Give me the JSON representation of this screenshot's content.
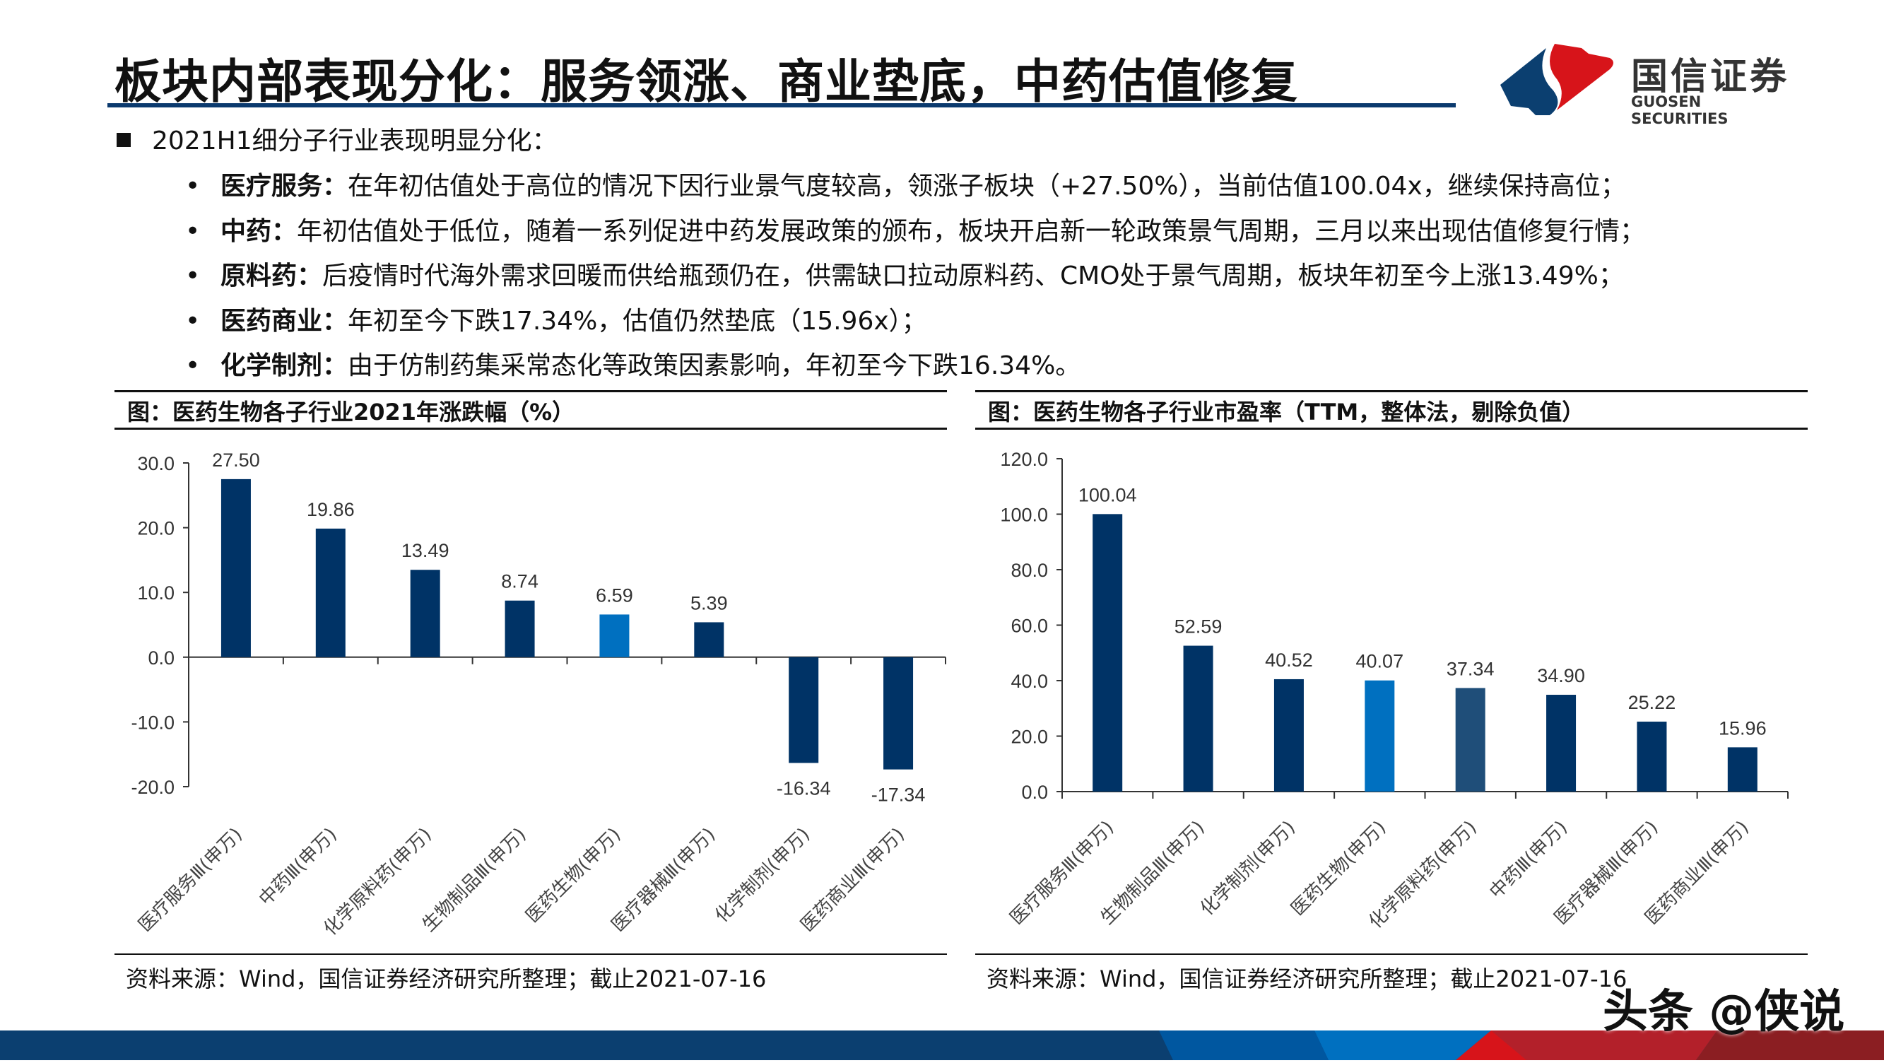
{
  "header": {
    "title": "板块内部表现分化：服务领涨、商业垫底，中药估值修复",
    "logo": {
      "cn": "国信证券",
      "en": "GUOSEN SECURITIES"
    }
  },
  "body": {
    "lead": "2021H1细分子行业表现明显分化：",
    "bullets": [
      {
        "bold": "医疗服务：",
        "text": "在年初估值处于高位的情况下因行业景气度较高，领涨子板块（+27.50%），当前估值100.04x，继续保持高位；"
      },
      {
        "bold": "中药：",
        "text": "年初估值处于低位，随着一系列促进中药发展政策的颁布，板块开启新一轮政策景气周期，三月以来出现估值修复行情；"
      },
      {
        "bold": "原料药：",
        "text": "后疫情时代海外需求回暖而供给瓶颈仍在，供需缺口拉动原料药、CMO处于景气周期，板块年初至今上涨13.49%；"
      },
      {
        "bold": "医药商业：",
        "text": "年初至今下跌17.34%，估值仍然垫底（15.96x）；"
      },
      {
        "bold": "化学制剂：",
        "text": "由于仿制药集采常态化等政策因素影响，年初至今下跌16.34%。"
      }
    ]
  },
  "watermark": "头条 @侠说",
  "colors": {
    "bar": "#003366",
    "highlight": "#0070c0",
    "alt": "#1f4e79",
    "brand_blue": "#0b3f70",
    "brand_red": "#d7141a"
  },
  "chart_data": [
    {
      "type": "bar",
      "title": "图：医药生物各子行业2021年涨跌幅（%）",
      "source": "资料来源：Wind，国信证券经济研究所整理；截止2021-07-16",
      "categories": [
        "医疗服务Ⅲ(申万)",
        "中药Ⅲ(申万)",
        "化学原料药(申万)",
        "生物制品Ⅲ(申万)",
        "医药生物(申万)",
        "医疗器械Ⅲ(申万)",
        "化学制剂(申万)",
        "医药商业Ⅲ(申万)"
      ],
      "values": [
        27.5,
        19.86,
        13.49,
        8.74,
        6.59,
        5.39,
        -16.34,
        -17.34
      ],
      "labels": [
        "27.50",
        "19.86",
        "13.49",
        "8.74",
        "6.59",
        "5.39",
        "-16.34",
        "-17.34"
      ],
      "bar_colors": [
        "#003366",
        "#003366",
        "#003366",
        "#003366",
        "#0070c0",
        "#003366",
        "#003366",
        "#003366"
      ],
      "ylim": [
        -20,
        30
      ],
      "yticks": [
        "30.0",
        "20.0",
        "10.0",
        "0.0",
        "-10.0",
        "-20.0"
      ],
      "ytick_values": [
        30,
        20,
        10,
        0,
        -10,
        -20
      ],
      "grid": false
    },
    {
      "type": "bar",
      "title": "图：医药生物各子行业市盈率（TTM，整体法，剔除负值）",
      "source": "资料来源：Wind，国信证券经济研究所整理；截止2021-07-16",
      "categories": [
        "医疗服务Ⅲ(申万)",
        "生物制品Ⅲ(申万)",
        "化学制剂(申万)",
        "医药生物(申万)",
        "化学原料药(申万)",
        "中药Ⅲ(申万)",
        "医疗器械Ⅲ(申万)",
        "医药商业Ⅲ(申万)"
      ],
      "values": [
        100.04,
        52.59,
        40.52,
        40.07,
        37.34,
        34.9,
        25.22,
        15.96
      ],
      "labels": [
        "100.04",
        "52.59",
        "40.52",
        "40.07",
        "37.34",
        "34.90",
        "25.22",
        "15.96"
      ],
      "bar_colors": [
        "#003366",
        "#003366",
        "#003366",
        "#0070c0",
        "#1f4e79",
        "#003366",
        "#003366",
        "#003366"
      ],
      "ylim": [
        0,
        120
      ],
      "yticks": [
        "120.0",
        "100.0",
        "80.0",
        "60.0",
        "40.0",
        "20.0",
        "0.0"
      ],
      "ytick_values": [
        120,
        100,
        80,
        60,
        40,
        20,
        0
      ],
      "grid": false
    }
  ]
}
